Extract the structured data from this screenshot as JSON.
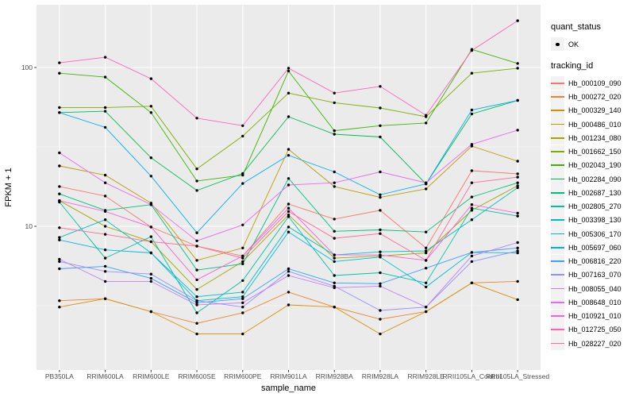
{
  "figure": {
    "panel_bg": "#EBEBEB",
    "grid_color": "#FFFFFF",
    "tick_color": "#333333",
    "tick_label_color": "#4D4D4D",
    "axis_title_color": "#000000",
    "point_color": "#000000",
    "legend_key_bg": "#F2F2F2"
  },
  "chart_data": {
    "type": "line",
    "title": "",
    "xlabel": "sample_name",
    "ylabel": "FPKM + 1",
    "y_scale": "log10",
    "grid": true,
    "legend_position": "right",
    "ylim": [
      1.24,
      248
    ],
    "y_ticks": [
      10,
      100
    ],
    "y_tick_labels": [
      "10",
      "100"
    ],
    "y_minor": [
      3.1623,
      31.623
    ],
    "categories": [
      "PB350LA",
      "RRIM600LA",
      "RRIM600LE",
      "RRIM600SE",
      "RRIM600PE",
      "RRIM901LA",
      "RRIM928BA",
      "RRIM928LA",
      "RRIM928LE",
      "RRII105LA_Control",
      "RRII105LA_Stressed"
    ],
    "legend": {
      "quant_status_title": "quant_status",
      "quant_status_items": [
        "OK"
      ],
      "tracking_title": "tracking_id"
    },
    "series": [
      {
        "name": "Hb_000109_090",
        "color": "#F8766D",
        "values": [
          17.8,
          15.5,
          9.9,
          7.5,
          6.5,
          13.8,
          11.1,
          12.6,
          7.3,
          22.4,
          21.4
        ]
      },
      {
        "name": "Hb_000272_020",
        "color": "#EA8331",
        "values": [
          3.4,
          3.5,
          2.9,
          2.45,
          2.85,
          3.85,
          3.1,
          2.6,
          2.9,
          4.4,
          4.5
        ]
      },
      {
        "name": "Hb_000329_140",
        "color": "#D89000",
        "values": [
          3.1,
          3.5,
          2.9,
          2.1,
          2.1,
          3.2,
          3.1,
          2.1,
          2.9,
          4.4,
          3.45
        ]
      },
      {
        "name": "Hb_000486_010",
        "color": "#C09B00",
        "values": [
          24,
          21,
          14,
          6.1,
          7.3,
          30.5,
          17.8,
          15.2,
          17.2,
          32,
          25.7
        ]
      },
      {
        "name": "Hb_001234_080",
        "color": "#A3A500",
        "values": [
          14.5,
          10,
          8.0,
          4.0,
          6.0,
          11.8,
          6.3,
          6.5,
          6.8,
          12.6,
          18
        ]
      },
      {
        "name": "Hb_001662_150",
        "color": "#7CAE00",
        "values": [
          56,
          56,
          57,
          23,
          37,
          69,
          60,
          55.6,
          49,
          92,
          99
        ]
      },
      {
        "name": "Hb_002043_190",
        "color": "#39B600",
        "values": [
          92,
          87,
          52,
          19.3,
          21,
          95,
          40,
          43,
          44.7,
          130,
          106
        ]
      },
      {
        "name": "Hb_002284_090",
        "color": "#00BB4E",
        "values": [
          52,
          53,
          27,
          16.8,
          21.5,
          49,
          38,
          36.5,
          18.5,
          51,
          62
        ]
      },
      {
        "name": "Hb_002687_130",
        "color": "#00BF7D",
        "values": [
          16,
          12.6,
          13.7,
          5.3,
          5.8,
          20,
          9.3,
          9.5,
          9.2,
          15.3,
          18.8
        ]
      },
      {
        "name": "Hb_002805_270",
        "color": "#00C1A3",
        "values": [
          14.2,
          6.3,
          8.6,
          2.85,
          4.55,
          11.5,
          4.9,
          5.1,
          4.4,
          13.0,
          11.6
        ]
      },
      {
        "name": "Hb_003398_130",
        "color": "#00BFC4",
        "values": [
          8.5,
          11,
          6.8,
          3.6,
          3.85,
          9.9,
          6.6,
          6.9,
          7.0,
          11.0,
          17.5
        ]
      },
      {
        "name": "Hb_005306_170",
        "color": "#00BAE0",
        "values": [
          8.2,
          7.1,
          6.8,
          3.4,
          3.6,
          9.2,
          6.0,
          6.4,
          4.15,
          6.85,
          6.8
        ]
      },
      {
        "name": "Hb_005697_060",
        "color": "#00B0F6",
        "values": [
          52,
          42,
          20.7,
          9.1,
          18.6,
          28,
          22,
          15.8,
          18.5,
          54,
          62
        ]
      },
      {
        "name": "Hb_006816_220",
        "color": "#35A2FF",
        "values": [
          5.4,
          5.6,
          4.7,
          3.3,
          3.5,
          5.4,
          4.4,
          4.35,
          5.45,
          6.85,
          7.3
        ]
      },
      {
        "name": "Hb_007163_070",
        "color": "#9590FF",
        "values": [
          6.0,
          5.2,
          5.0,
          3.4,
          3.1,
          5.2,
          4.2,
          2.95,
          3.1,
          6.0,
          7.0
        ]
      },
      {
        "name": "Hb_008055_040",
        "color": "#C77CFF",
        "values": [
          6.2,
          4.5,
          4.5,
          3.2,
          3.3,
          4.9,
          4.1,
          4.2,
          3.1,
          6.5,
          7.9
        ]
      },
      {
        "name": "Hb_008648_010",
        "color": "#E76BF3",
        "values": [
          29,
          18.8,
          13.7,
          8.1,
          10.2,
          18.2,
          18.8,
          22,
          18.8,
          32.8,
          40.3
        ]
      },
      {
        "name": "Hb_010921_010",
        "color": "#FA62DB",
        "values": [
          14.5,
          12.4,
          9.9,
          4.6,
          6.5,
          13.0,
          6.6,
          6.6,
          6.1,
          13.7,
          12.1
        ]
      },
      {
        "name": "Hb_012725_050",
        "color": "#FF62BC",
        "values": [
          107,
          116,
          85,
          48,
          43,
          99,
          69,
          76,
          50,
          128,
          197
        ]
      },
      {
        "name": "Hb_028227_020",
        "color": "#FF6A98",
        "values": [
          9.8,
          8.9,
          8.0,
          7.5,
          6.3,
          12.4,
          8.4,
          9.0,
          6.1,
          18.8,
          20.4
        ]
      }
    ]
  }
}
